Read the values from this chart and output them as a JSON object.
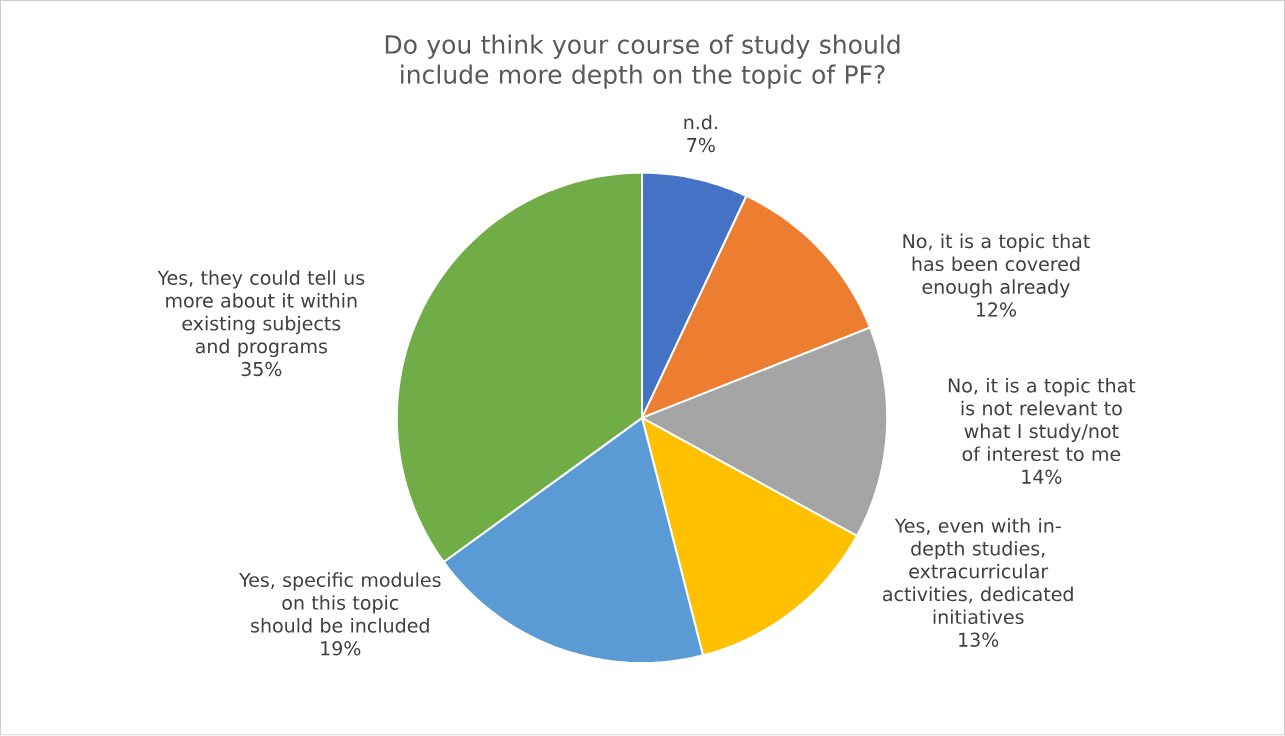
{
  "chart_data": {
    "type": "pie",
    "title": "Do you think your course of study should include more depth on the topic of PF?",
    "categories": [
      "n.d.",
      "No, it is a topic that has been covered enough already",
      "No, it is a topic that is not relevant to what I study/not of interest to me",
      "Yes, even with in-depth studies, extracurricular activities, dedicated initiatives",
      "Yes, specific modules on this topic should be included",
      "Yes, they could tell us more about it within existing subjects and programs"
    ],
    "values": [
      7,
      12,
      14,
      13,
      19,
      35
    ],
    "value_labels": [
      "7%",
      "12%",
      "14%",
      "13%",
      "19%",
      "35%"
    ],
    "colors": [
      "#4472c4",
      "#ed7d31",
      "#a5a5a5",
      "#ffc000",
      "#5b9bd5",
      "#70ad47"
    ]
  }
}
